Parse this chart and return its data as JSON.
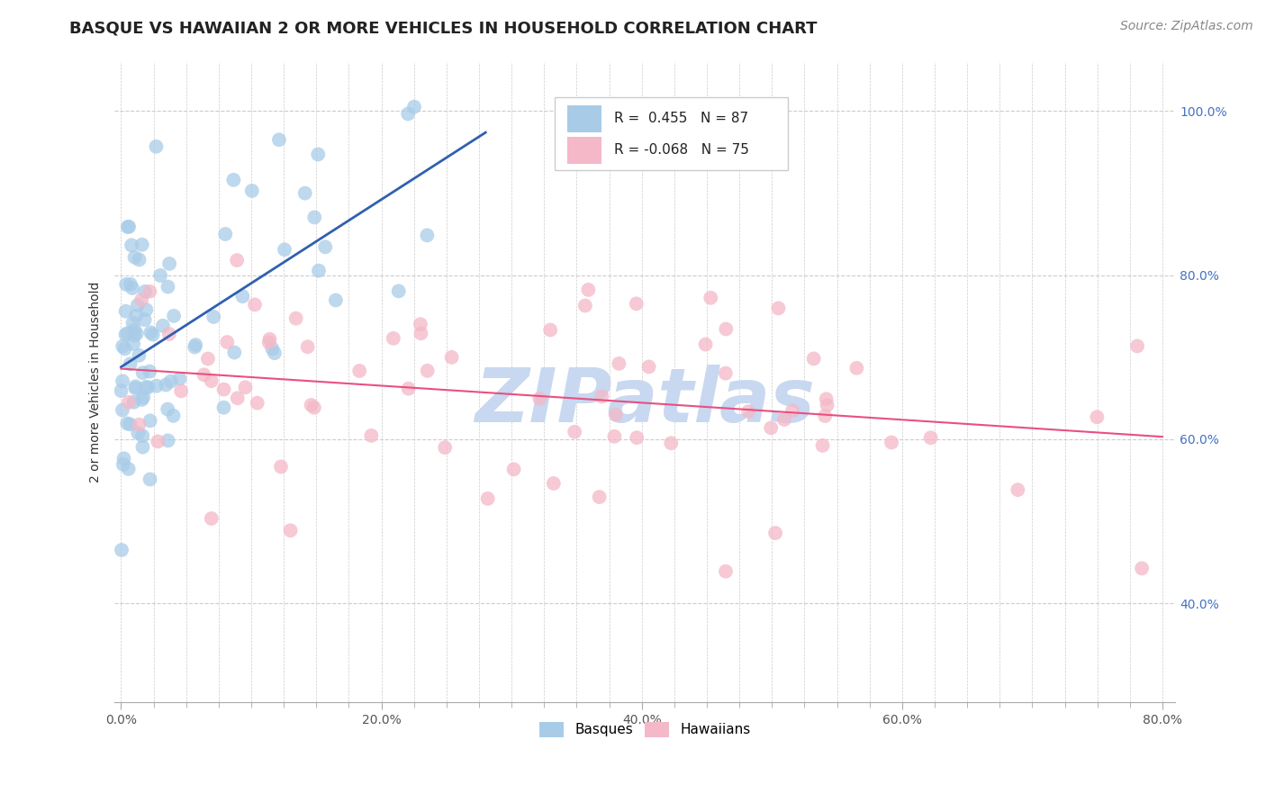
{
  "title": "BASQUE VS HAWAIIAN 2 OR MORE VEHICLES IN HOUSEHOLD CORRELATION CHART",
  "source": "Source: ZipAtlas.com",
  "ylabel": "2 or more Vehicles in Household",
  "xlim": [
    -0.005,
    0.81
  ],
  "ylim": [
    0.28,
    1.06
  ],
  "xtick_labels": [
    "0.0%",
    "",
    "",
    "",
    "",
    "",
    "",
    "",
    "20.0%",
    "",
    "",
    "",
    "",
    "",
    "",
    "",
    "40.0%",
    "",
    "",
    "",
    "",
    "",
    "",
    "",
    "60.0%",
    "",
    "",
    "",
    "",
    "",
    "",
    "",
    "80.0%"
  ],
  "xtick_values": [
    0.0,
    0.025,
    0.05,
    0.075,
    0.1,
    0.125,
    0.15,
    0.175,
    0.2,
    0.225,
    0.25,
    0.275,
    0.3,
    0.325,
    0.35,
    0.375,
    0.4,
    0.425,
    0.45,
    0.475,
    0.5,
    0.525,
    0.55,
    0.575,
    0.6,
    0.625,
    0.65,
    0.675,
    0.7,
    0.725,
    0.75,
    0.775,
    0.8
  ],
  "major_xtick_values": [
    0.0,
    0.2,
    0.4,
    0.6,
    0.8
  ],
  "major_xtick_labels": [
    "0.0%",
    "20.0%",
    "40.0%",
    "60.0%",
    "80.0%"
  ],
  "ytick_labels": [
    "40.0%",
    "60.0%",
    "80.0%",
    "100.0%"
  ],
  "ytick_values": [
    0.4,
    0.6,
    0.8,
    1.0
  ],
  "legend_labels": [
    "Basques",
    "Hawaiians"
  ],
  "legend_R_basque": "R =  0.455",
  "legend_N_basque": "N = 87",
  "legend_R_hawaiian": "R = -0.068",
  "legend_N_hawaiian": "N = 75",
  "basque_color": "#a8cce8",
  "hawaiian_color": "#f4b8c8",
  "basque_line_color": "#3060b0",
  "hawaiian_line_color": "#e85080",
  "watermark": "ZIPatlas",
  "watermark_color": "#c8d8f0",
  "background_color": "#ffffff",
  "grid_color": "#cccccc",
  "title_fontsize": 13,
  "axis_label_fontsize": 10,
  "tick_fontsize": 10,
  "source_fontsize": 10,
  "ytick_color": "#4472c4"
}
